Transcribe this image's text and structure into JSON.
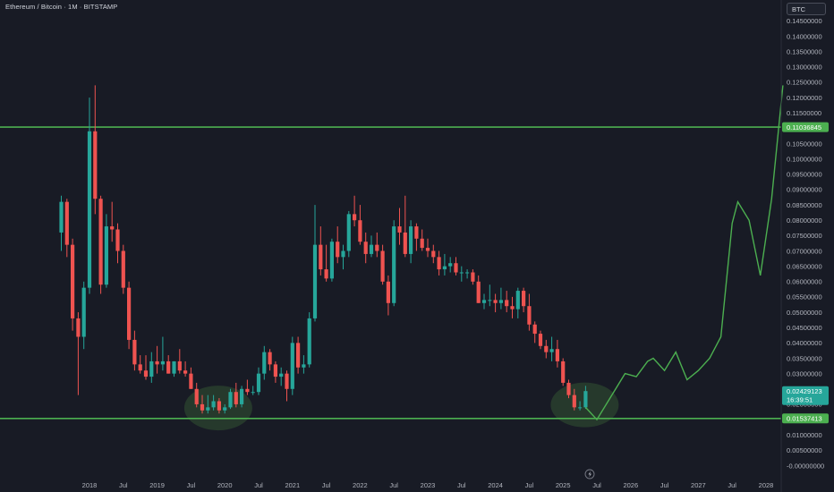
{
  "header": {
    "title": "Ethereum / Bitcoin · 1M · BITSTAMP",
    "currency": "BTC"
  },
  "colors": {
    "background": "#181b25",
    "up": "#26a69a",
    "down": "#ef5350",
    "level_line": "#4caf50",
    "projection": "#4caf50",
    "highlight": "#2e4a2f",
    "price_badge": "#26a69a",
    "level_badge": "#4caf50"
  },
  "icons": {
    "bottom_marker": "lightning-icon"
  },
  "chart_data": {
    "type": "candlestick",
    "title": "Ethereum / Bitcoin · 1M · BITSTAMP",
    "ylim": [
      -0.0015,
      0.149
    ],
    "y_ticks": [
      "0.14500000",
      "0.14000000",
      "0.13500000",
      "0.13000000",
      "0.12500000",
      "0.12000000",
      "0.11500000",
      "0.11000000",
      "0.10500000",
      "0.10000000",
      "0.09500000",
      "0.09000000",
      "0.08500000",
      "0.08000000",
      "0.07500000",
      "0.07000000",
      "0.06500000",
      "0.06000000",
      "0.05500000",
      "0.05000000",
      "0.04500000",
      "0.04000000",
      "0.03500000",
      "0.03000000",
      "0.02500000",
      "0.02000000",
      "0.01500000",
      "0.01000000",
      "0.00500000",
      "-0.00000000"
    ],
    "x_ticks": [
      {
        "date": "2018-01",
        "label": "2018"
      },
      {
        "date": "2018-07",
        "label": "Jul"
      },
      {
        "date": "2019-01",
        "label": "2019"
      },
      {
        "date": "2019-07",
        "label": "Jul"
      },
      {
        "date": "2020-01",
        "label": "2020"
      },
      {
        "date": "2020-07",
        "label": "Jul"
      },
      {
        "date": "2021-01",
        "label": "2021"
      },
      {
        "date": "2021-07",
        "label": "Jul"
      },
      {
        "date": "2022-01",
        "label": "2022"
      },
      {
        "date": "2022-07",
        "label": "Jul"
      },
      {
        "date": "2023-01",
        "label": "2023"
      },
      {
        "date": "2023-07",
        "label": "Jul"
      },
      {
        "date": "2024-01",
        "label": "2024"
      },
      {
        "date": "2024-07",
        "label": "Jul"
      },
      {
        "date": "2025-01",
        "label": "2025"
      },
      {
        "date": "2025-07",
        "label": "Jul"
      },
      {
        "date": "2026-01",
        "label": "2026"
      },
      {
        "date": "2026-07",
        "label": "Jul"
      },
      {
        "date": "2027-01",
        "label": "2027"
      },
      {
        "date": "2027-07",
        "label": "Jul"
      },
      {
        "date": "2028-01",
        "label": "2028"
      }
    ],
    "candles": [
      {
        "date": "2017-08",
        "o": 0.076,
        "h": 0.088,
        "l": 0.07,
        "c": 0.086
      },
      {
        "date": "2017-09",
        "o": 0.086,
        "h": 0.087,
        "l": 0.068,
        "c": 0.072
      },
      {
        "date": "2017-10",
        "o": 0.072,
        "h": 0.074,
        "l": 0.044,
        "c": 0.048
      },
      {
        "date": "2017-11",
        "o": 0.048,
        "h": 0.05,
        "l": 0.023,
        "c": 0.042
      },
      {
        "date": "2017-12",
        "o": 0.042,
        "h": 0.06,
        "l": 0.038,
        "c": 0.058
      },
      {
        "date": "2018-01",
        "o": 0.058,
        "h": 0.12,
        "l": 0.056,
        "c": 0.109
      },
      {
        "date": "2018-02",
        "o": 0.109,
        "h": 0.124,
        "l": 0.082,
        "c": 0.087
      },
      {
        "date": "2018-03",
        "o": 0.087,
        "h": 0.088,
        "l": 0.056,
        "c": 0.059
      },
      {
        "date": "2018-04",
        "o": 0.059,
        "h": 0.082,
        "l": 0.058,
        "c": 0.078
      },
      {
        "date": "2018-05",
        "o": 0.078,
        "h": 0.086,
        "l": 0.073,
        "c": 0.077
      },
      {
        "date": "2018-06",
        "o": 0.077,
        "h": 0.079,
        "l": 0.066,
        "c": 0.07
      },
      {
        "date": "2018-07",
        "o": 0.07,
        "h": 0.072,
        "l": 0.056,
        "c": 0.058
      },
      {
        "date": "2018-08",
        "o": 0.058,
        "h": 0.06,
        "l": 0.038,
        "c": 0.041
      },
      {
        "date": "2018-09",
        "o": 0.041,
        "h": 0.044,
        "l": 0.031,
        "c": 0.033
      },
      {
        "date": "2018-10",
        "o": 0.033,
        "h": 0.036,
        "l": 0.03,
        "c": 0.031
      },
      {
        "date": "2018-11",
        "o": 0.031,
        "h": 0.036,
        "l": 0.028,
        "c": 0.029
      },
      {
        "date": "2018-12",
        "o": 0.029,
        "h": 0.037,
        "l": 0.027,
        "c": 0.034
      },
      {
        "date": "2019-01",
        "o": 0.034,
        "h": 0.039,
        "l": 0.03,
        "c": 0.033
      },
      {
        "date": "2019-02",
        "o": 0.033,
        "h": 0.042,
        "l": 0.031,
        "c": 0.034
      },
      {
        "date": "2019-03",
        "o": 0.034,
        "h": 0.036,
        "l": 0.03,
        "c": 0.03
      },
      {
        "date": "2019-04",
        "o": 0.03,
        "h": 0.034,
        "l": 0.029,
        "c": 0.034
      },
      {
        "date": "2019-05",
        "o": 0.034,
        "h": 0.038,
        "l": 0.03,
        "c": 0.031
      },
      {
        "date": "2019-06",
        "o": 0.031,
        "h": 0.034,
        "l": 0.029,
        "c": 0.03
      },
      {
        "date": "2019-07",
        "o": 0.03,
        "h": 0.032,
        "l": 0.025,
        "c": 0.025
      },
      {
        "date": "2019-08",
        "o": 0.025,
        "h": 0.027,
        "l": 0.019,
        "c": 0.02
      },
      {
        "date": "2019-09",
        "o": 0.02,
        "h": 0.023,
        "l": 0.017,
        "c": 0.018
      },
      {
        "date": "2019-10",
        "o": 0.018,
        "h": 0.023,
        "l": 0.017,
        "c": 0.019
      },
      {
        "date": "2019-11",
        "o": 0.019,
        "h": 0.023,
        "l": 0.018,
        "c": 0.021
      },
      {
        "date": "2019-12",
        "o": 0.021,
        "h": 0.022,
        "l": 0.017,
        "c": 0.018
      },
      {
        "date": "2020-01",
        "o": 0.018,
        "h": 0.02,
        "l": 0.017,
        "c": 0.019
      },
      {
        "date": "2020-02",
        "o": 0.019,
        "h": 0.025,
        "l": 0.0185,
        "c": 0.024
      },
      {
        "date": "2020-03",
        "o": 0.024,
        "h": 0.027,
        "l": 0.019,
        "c": 0.02
      },
      {
        "date": "2020-04",
        "o": 0.02,
        "h": 0.026,
        "l": 0.019,
        "c": 0.025
      },
      {
        "date": "2020-05",
        "o": 0.025,
        "h": 0.028,
        "l": 0.023,
        "c": 0.024
      },
      {
        "date": "2020-06",
        "o": 0.024,
        "h": 0.026,
        "l": 0.023,
        "c": 0.024
      },
      {
        "date": "2020-07",
        "o": 0.024,
        "h": 0.032,
        "l": 0.023,
        "c": 0.03
      },
      {
        "date": "2020-08",
        "o": 0.03,
        "h": 0.039,
        "l": 0.028,
        "c": 0.037
      },
      {
        "date": "2020-09",
        "o": 0.037,
        "h": 0.038,
        "l": 0.031,
        "c": 0.033
      },
      {
        "date": "2020-10",
        "o": 0.033,
        "h": 0.034,
        "l": 0.027,
        "c": 0.029
      },
      {
        "date": "2020-11",
        "o": 0.029,
        "h": 0.032,
        "l": 0.026,
        "c": 0.03
      },
      {
        "date": "2020-12",
        "o": 0.03,
        "h": 0.031,
        "l": 0.021,
        "c": 0.025
      },
      {
        "date": "2021-01",
        "o": 0.025,
        "h": 0.042,
        "l": 0.023,
        "c": 0.04
      },
      {
        "date": "2021-02",
        "o": 0.04,
        "h": 0.042,
        "l": 0.03,
        "c": 0.032
      },
      {
        "date": "2021-03",
        "o": 0.032,
        "h": 0.036,
        "l": 0.03,
        "c": 0.033
      },
      {
        "date": "2021-04",
        "o": 0.033,
        "h": 0.05,
        "l": 0.032,
        "c": 0.048
      },
      {
        "date": "2021-05",
        "o": 0.048,
        "h": 0.085,
        "l": 0.047,
        "c": 0.072
      },
      {
        "date": "2021-06",
        "o": 0.072,
        "h": 0.078,
        "l": 0.062,
        "c": 0.064
      },
      {
        "date": "2021-07",
        "o": 0.064,
        "h": 0.072,
        "l": 0.06,
        "c": 0.061
      },
      {
        "date": "2021-08",
        "o": 0.061,
        "h": 0.074,
        "l": 0.06,
        "c": 0.073
      },
      {
        "date": "2021-09",
        "o": 0.073,
        "h": 0.078,
        "l": 0.066,
        "c": 0.068
      },
      {
        "date": "2021-10",
        "o": 0.068,
        "h": 0.072,
        "l": 0.064,
        "c": 0.07
      },
      {
        "date": "2021-11",
        "o": 0.07,
        "h": 0.083,
        "l": 0.068,
        "c": 0.082
      },
      {
        "date": "2021-12",
        "o": 0.082,
        "h": 0.088,
        "l": 0.078,
        "c": 0.08
      },
      {
        "date": "2022-01",
        "o": 0.08,
        "h": 0.085,
        "l": 0.072,
        "c": 0.073
      },
      {
        "date": "2022-02",
        "o": 0.073,
        "h": 0.076,
        "l": 0.066,
        "c": 0.069
      },
      {
        "date": "2022-03",
        "o": 0.069,
        "h": 0.075,
        "l": 0.068,
        "c": 0.072
      },
      {
        "date": "2022-04",
        "o": 0.072,
        "h": 0.076,
        "l": 0.068,
        "c": 0.07
      },
      {
        "date": "2022-05",
        "o": 0.07,
        "h": 0.072,
        "l": 0.059,
        "c": 0.06
      },
      {
        "date": "2022-06",
        "o": 0.06,
        "h": 0.062,
        "l": 0.049,
        "c": 0.053
      },
      {
        "date": "2022-07",
        "o": 0.053,
        "h": 0.08,
        "l": 0.052,
        "c": 0.078
      },
      {
        "date": "2022-08",
        "o": 0.078,
        "h": 0.084,
        "l": 0.072,
        "c": 0.076
      },
      {
        "date": "2022-09",
        "o": 0.076,
        "h": 0.088,
        "l": 0.068,
        "c": 0.069
      },
      {
        "date": "2022-10",
        "o": 0.069,
        "h": 0.08,
        "l": 0.066,
        "c": 0.078
      },
      {
        "date": "2022-11",
        "o": 0.078,
        "h": 0.079,
        "l": 0.07,
        "c": 0.074
      },
      {
        "date": "2022-12",
        "o": 0.074,
        "h": 0.077,
        "l": 0.07,
        "c": 0.071
      },
      {
        "date": "2023-01",
        "o": 0.071,
        "h": 0.074,
        "l": 0.068,
        "c": 0.07
      },
      {
        "date": "2023-02",
        "o": 0.07,
        "h": 0.072,
        "l": 0.066,
        "c": 0.068
      },
      {
        "date": "2023-03",
        "o": 0.068,
        "h": 0.07,
        "l": 0.062,
        "c": 0.064
      },
      {
        "date": "2023-04",
        "o": 0.064,
        "h": 0.069,
        "l": 0.062,
        "c": 0.065
      },
      {
        "date": "2023-05",
        "o": 0.065,
        "h": 0.068,
        "l": 0.063,
        "c": 0.066
      },
      {
        "date": "2023-06",
        "o": 0.066,
        "h": 0.068,
        "l": 0.062,
        "c": 0.063
      },
      {
        "date": "2023-07",
        "o": 0.063,
        "h": 0.065,
        "l": 0.06,
        "c": 0.063
      },
      {
        "date": "2023-08",
        "o": 0.063,
        "h": 0.064,
        "l": 0.061,
        "c": 0.063
      },
      {
        "date": "2023-09",
        "o": 0.063,
        "h": 0.064,
        "l": 0.059,
        "c": 0.06
      },
      {
        "date": "2023-10",
        "o": 0.06,
        "h": 0.062,
        "l": 0.053,
        "c": 0.053
      },
      {
        "date": "2023-11",
        "o": 0.053,
        "h": 0.056,
        "l": 0.051,
        "c": 0.054
      },
      {
        "date": "2023-12",
        "o": 0.054,
        "h": 0.059,
        "l": 0.052,
        "c": 0.054
      },
      {
        "date": "2024-01",
        "o": 0.054,
        "h": 0.056,
        "l": 0.05,
        "c": 0.053
      },
      {
        "date": "2024-02",
        "o": 0.053,
        "h": 0.058,
        "l": 0.051,
        "c": 0.054
      },
      {
        "date": "2024-03",
        "o": 0.054,
        "h": 0.057,
        "l": 0.05,
        "c": 0.052
      },
      {
        "date": "2024-04",
        "o": 0.052,
        "h": 0.055,
        "l": 0.048,
        "c": 0.051
      },
      {
        "date": "2024-05",
        "o": 0.051,
        "h": 0.058,
        "l": 0.048,
        "c": 0.057
      },
      {
        "date": "2024-06",
        "o": 0.057,
        "h": 0.058,
        "l": 0.05,
        "c": 0.052
      },
      {
        "date": "2024-07",
        "o": 0.052,
        "h": 0.056,
        "l": 0.044,
        "c": 0.046
      },
      {
        "date": "2024-08",
        "o": 0.046,
        "h": 0.047,
        "l": 0.04,
        "c": 0.043
      },
      {
        "date": "2024-09",
        "o": 0.043,
        "h": 0.044,
        "l": 0.038,
        "c": 0.039
      },
      {
        "date": "2024-10",
        "o": 0.039,
        "h": 0.041,
        "l": 0.035,
        "c": 0.037
      },
      {
        "date": "2024-11",
        "o": 0.037,
        "h": 0.042,
        "l": 0.034,
        "c": 0.038
      },
      {
        "date": "2024-12",
        "o": 0.038,
        "h": 0.041,
        "l": 0.032,
        "c": 0.034
      },
      {
        "date": "2025-01",
        "o": 0.034,
        "h": 0.035,
        "l": 0.026,
        "c": 0.027
      },
      {
        "date": "2025-02",
        "o": 0.027,
        "h": 0.028,
        "l": 0.022,
        "c": 0.023
      },
      {
        "date": "2025-03",
        "o": 0.023,
        "h": 0.025,
        "l": 0.018,
        "c": 0.019
      },
      {
        "date": "2025-04",
        "o": 0.019,
        "h": 0.021,
        "l": 0.018,
        "c": 0.019
      },
      {
        "date": "2025-05",
        "o": 0.019,
        "h": 0.026,
        "l": 0.0185,
        "c": 0.0243
      }
    ],
    "projection": [
      {
        "date": "2025-05",
        "y": 0.019
      },
      {
        "date": "2025-07",
        "y": 0.015
      },
      {
        "date": "2025-12",
        "y": 0.03
      },
      {
        "date": "2026-02",
        "y": 0.029
      },
      {
        "date": "2026-04",
        "y": 0.034
      },
      {
        "date": "2026-05",
        "y": 0.035
      },
      {
        "date": "2026-07",
        "y": 0.031
      },
      {
        "date": "2026-09",
        "y": 0.037
      },
      {
        "date": "2026-11",
        "y": 0.028
      },
      {
        "date": "2027-01",
        "y": 0.031
      },
      {
        "date": "2027-03",
        "y": 0.035
      },
      {
        "date": "2027-05",
        "y": 0.042
      },
      {
        "date": "2027-07",
        "y": 0.079
      },
      {
        "date": "2027-08",
        "y": 0.086
      },
      {
        "date": "2027-10",
        "y": 0.08
      },
      {
        "date": "2027-12",
        "y": 0.062
      },
      {
        "date": "2028-02",
        "y": 0.087
      },
      {
        "date": "2028-04",
        "y": 0.124
      }
    ],
    "levels": [
      {
        "y": 0.11036845,
        "label": "0.11036845"
      },
      {
        "y": 0.01537413,
        "label": "0.01537413"
      }
    ],
    "current": {
      "y": 0.02429123,
      "price_label": "0.02429123",
      "countdown": "16:39:51"
    },
    "highlights": [
      {
        "date": "2019-12",
        "y": 0.0185
      },
      {
        "date": "2025-05",
        "y": 0.0195
      }
    ]
  }
}
